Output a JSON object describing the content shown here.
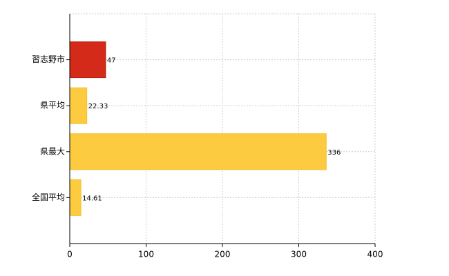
{
  "chart_data": {
    "type": "hbar",
    "categories": [
      "習志野市",
      "県平均",
      "県最大",
      "全国平均"
    ],
    "values": [
      47,
      22.33,
      336,
      14.61
    ],
    "colors": [
      "#d42a1a",
      "#fccb3f",
      "#fccb3f",
      "#fccb3f"
    ],
    "xlim": [
      0,
      400
    ],
    "xticks": [
      0,
      100,
      200,
      300,
      400
    ],
    "grid": true
  }
}
